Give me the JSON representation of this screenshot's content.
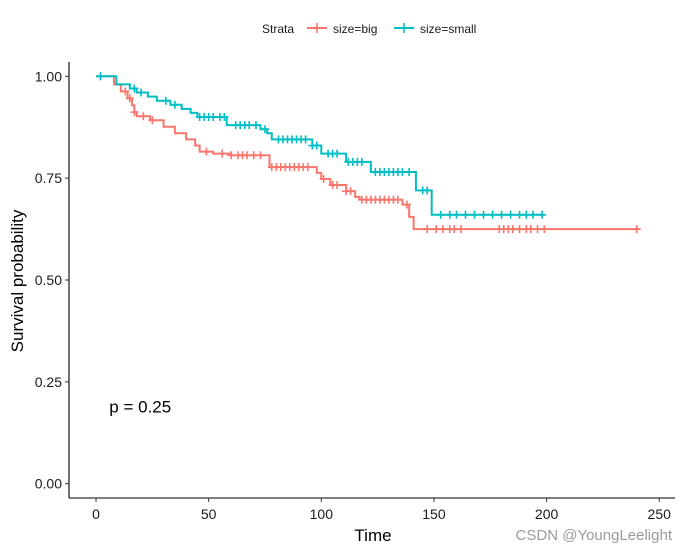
{
  "chart_data": {
    "type": "line",
    "subtype": "kaplan-meier-step",
    "xlabel": "Time",
    "ylabel": "Survival probability",
    "xlim": [
      -12,
      257
    ],
    "ylim": [
      -0.035,
      1.035
    ],
    "x_ticks": [
      0,
      50,
      100,
      150,
      200,
      250
    ],
    "x_tick_labels": [
      "0",
      "50",
      "100",
      "150",
      "200",
      "250"
    ],
    "y_ticks": [
      0,
      0.25,
      0.5,
      0.75,
      1
    ],
    "y_tick_labels": [
      "0.00",
      "0.25",
      "0.50",
      "0.75",
      "1.00"
    ],
    "grid": false,
    "legend": {
      "title": "Strata",
      "position": "top"
    },
    "annotations": [
      {
        "text": "p = 0.25",
        "x": 5,
        "y": 0.19
      }
    ],
    "series": [
      {
        "name": "size=big",
        "color": "#F8766D",
        "steps": [
          [
            0,
            1.0
          ],
          [
            8,
            0.98
          ],
          [
            11,
            0.963
          ],
          [
            14,
            0.946
          ],
          [
            16,
            0.929
          ],
          [
            17,
            0.912
          ],
          [
            18,
            0.902
          ],
          [
            24,
            0.892
          ],
          [
            30,
            0.876
          ],
          [
            35,
            0.86
          ],
          [
            40,
            0.845
          ],
          [
            44,
            0.83
          ],
          [
            46,
            0.815
          ],
          [
            52,
            0.81
          ],
          [
            60,
            0.806
          ],
          [
            77,
            0.777
          ],
          [
            98,
            0.763
          ],
          [
            100,
            0.748
          ],
          [
            104,
            0.733
          ],
          [
            111,
            0.718
          ],
          [
            115,
            0.704
          ],
          [
            117,
            0.697
          ],
          [
            136,
            0.685
          ],
          [
            139,
            0.655
          ],
          [
            141,
            0.625
          ],
          [
            241,
            0.625
          ]
        ],
        "censored": [
          [
            2,
            1.0
          ],
          [
            13,
            0.963
          ],
          [
            15,
            0.946
          ],
          [
            17,
            0.912
          ],
          [
            21,
            0.902
          ],
          [
            25,
            0.892
          ],
          [
            49,
            0.815
          ],
          [
            56,
            0.81
          ],
          [
            60,
            0.806
          ],
          [
            63,
            0.806
          ],
          [
            65,
            0.806
          ],
          [
            67,
            0.806
          ],
          [
            70,
            0.806
          ],
          [
            73,
            0.806
          ],
          [
            78,
            0.777
          ],
          [
            80,
            0.777
          ],
          [
            82,
            0.777
          ],
          [
            84,
            0.777
          ],
          [
            86,
            0.777
          ],
          [
            88,
            0.777
          ],
          [
            90,
            0.777
          ],
          [
            92,
            0.777
          ],
          [
            94,
            0.777
          ],
          [
            101,
            0.748
          ],
          [
            105,
            0.733
          ],
          [
            107,
            0.733
          ],
          [
            111,
            0.718
          ],
          [
            113,
            0.718
          ],
          [
            118,
            0.697
          ],
          [
            120,
            0.697
          ],
          [
            122,
            0.697
          ],
          [
            124,
            0.697
          ],
          [
            126,
            0.697
          ],
          [
            128,
            0.697
          ],
          [
            130,
            0.697
          ],
          [
            132,
            0.697
          ],
          [
            134,
            0.697
          ],
          [
            138,
            0.685
          ],
          [
            147,
            0.625
          ],
          [
            151,
            0.625
          ],
          [
            154,
            0.625
          ],
          [
            157,
            0.625
          ],
          [
            159,
            0.625
          ],
          [
            162,
            0.625
          ],
          [
            179,
            0.625
          ],
          [
            181,
            0.625
          ],
          [
            183,
            0.625
          ],
          [
            185,
            0.625
          ],
          [
            188,
            0.625
          ],
          [
            191,
            0.625
          ],
          [
            193,
            0.625
          ],
          [
            196,
            0.625
          ],
          [
            199,
            0.625
          ],
          [
            240,
            0.625
          ]
        ]
      },
      {
        "name": "size=small",
        "color": "#00BFC4",
        "steps": [
          [
            0,
            1.0
          ],
          [
            9,
            0.98
          ],
          [
            15,
            0.97
          ],
          [
            18,
            0.96
          ],
          [
            23,
            0.95
          ],
          [
            27,
            0.94
          ],
          [
            33,
            0.93
          ],
          [
            38,
            0.92
          ],
          [
            42,
            0.91
          ],
          [
            45,
            0.9
          ],
          [
            58,
            0.88
          ],
          [
            73,
            0.87
          ],
          [
            76,
            0.86
          ],
          [
            78,
            0.845
          ],
          [
            96,
            0.83
          ],
          [
            100,
            0.81
          ],
          [
            111,
            0.79
          ],
          [
            122,
            0.765
          ],
          [
            142,
            0.72
          ],
          [
            149,
            0.66
          ],
          [
            199,
            0.66
          ]
        ],
        "censored": [
          [
            2,
            1.0
          ],
          [
            17,
            0.97
          ],
          [
            20,
            0.96
          ],
          [
            31,
            0.94
          ],
          [
            35,
            0.93
          ],
          [
            46,
            0.9
          ],
          [
            48,
            0.9
          ],
          [
            50,
            0.9
          ],
          [
            52,
            0.9
          ],
          [
            55,
            0.9
          ],
          [
            57,
            0.9
          ],
          [
            62,
            0.88
          ],
          [
            64,
            0.88
          ],
          [
            66,
            0.88
          ],
          [
            68,
            0.88
          ],
          [
            71,
            0.88
          ],
          [
            75,
            0.87
          ],
          [
            81,
            0.845
          ],
          [
            83,
            0.845
          ],
          [
            85,
            0.845
          ],
          [
            87,
            0.845
          ],
          [
            89,
            0.845
          ],
          [
            91,
            0.845
          ],
          [
            93,
            0.845
          ],
          [
            96,
            0.83
          ],
          [
            98,
            0.83
          ],
          [
            103,
            0.81
          ],
          [
            105,
            0.81
          ],
          [
            107,
            0.81
          ],
          [
            112,
            0.79
          ],
          [
            114,
            0.79
          ],
          [
            116,
            0.79
          ],
          [
            118,
            0.79
          ],
          [
            124,
            0.765
          ],
          [
            126,
            0.765
          ],
          [
            128,
            0.765
          ],
          [
            130,
            0.765
          ],
          [
            132,
            0.765
          ],
          [
            134,
            0.765
          ],
          [
            136,
            0.765
          ],
          [
            139,
            0.765
          ],
          [
            145,
            0.72
          ],
          [
            147,
            0.72
          ],
          [
            153,
            0.66
          ],
          [
            157,
            0.66
          ],
          [
            160,
            0.66
          ],
          [
            164,
            0.66
          ],
          [
            168,
            0.66
          ],
          [
            172,
            0.66
          ],
          [
            176,
            0.66
          ],
          [
            180,
            0.66
          ],
          [
            184,
            0.66
          ],
          [
            188,
            0.66
          ],
          [
            191,
            0.66
          ],
          [
            194,
            0.66
          ],
          [
            198,
            0.66
          ]
        ]
      }
    ]
  },
  "watermark": "CSDN @YoungLeelight"
}
